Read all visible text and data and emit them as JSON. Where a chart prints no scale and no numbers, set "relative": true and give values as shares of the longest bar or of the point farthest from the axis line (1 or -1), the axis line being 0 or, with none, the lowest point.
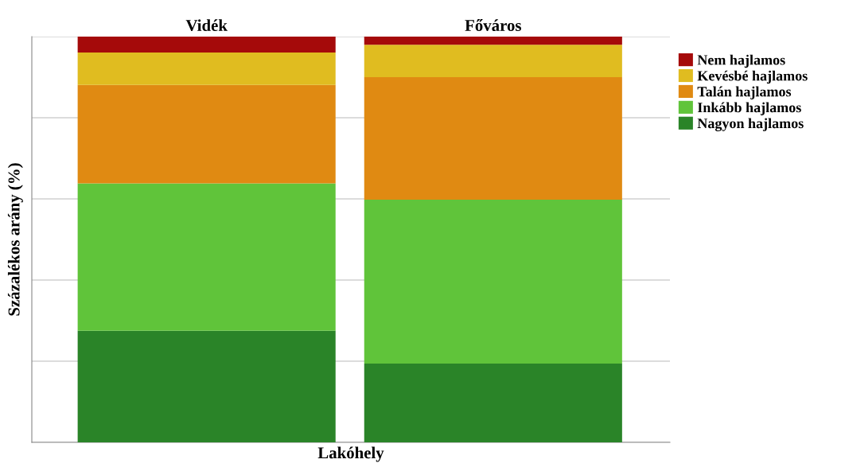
{
  "chart_data": {
    "type": "bar",
    "stacked": true,
    "relative": true,
    "xlabel": "Lakóhely",
    "ylabel": "Százalékos arány (%)",
    "categories": [
      "Vidék",
      "Főváros"
    ],
    "series": [
      {
        "name": "Nagyon hajlamos",
        "color": "#2a8428",
        "values": [
          0.275,
          0.194
        ]
      },
      {
        "name": "Inkább hajlamos",
        "color": "#60c43a",
        "values": [
          0.363,
          0.404
        ]
      },
      {
        "name": "Talán hajlamos",
        "color": "#e08a12",
        "values": [
          0.243,
          0.302
        ]
      },
      {
        "name": "Kevésbé hajlamos",
        "color": "#e0bc20",
        "values": [
          0.08,
          0.08
        ]
      },
      {
        "name": "Nem hajlamos",
        "color": "#a50a0a",
        "values": [
          0.039,
          0.02
        ]
      }
    ],
    "grid": "y",
    "legend": "top right"
  }
}
